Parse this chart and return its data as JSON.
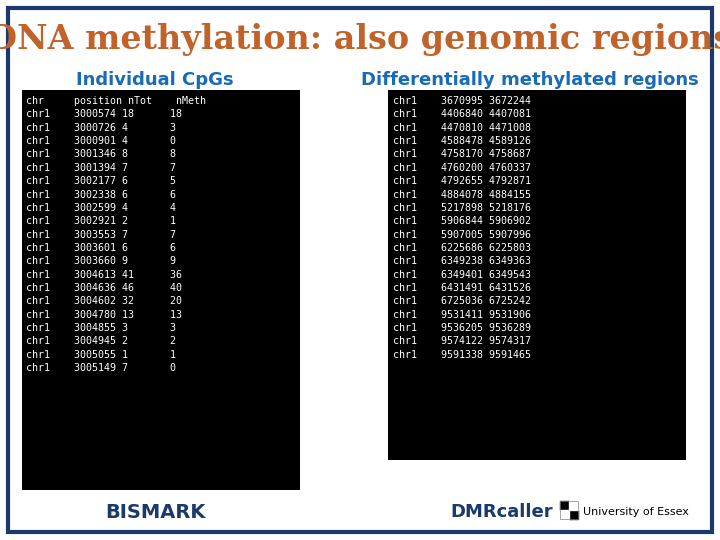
{
  "title": "DNA methylation: also genomic regions",
  "title_color": "#c0622a",
  "background_color": "#ffffff",
  "border_color": "#1a3a6b",
  "left_label": "Individual CpGs",
  "left_label_color": "#1a6bb5",
  "right_label": "Differentially methylated regions",
  "right_label_color": "#1a6bb5",
  "bismark_label": "BISMARK",
  "bismark_color": "#1a3a6b",
  "dmrcaller_label": "DMRcaller",
  "dmrcaller_color": "#1a3a6b",
  "table_bg": "#000000",
  "table_text_color": "#ffffff",
  "left_table_text": "chr     position nTot    nMeth\nchr1    3000574 18      18\nchr1    3000726 4       3\nchr1    3000901 4       0\nchr1    3001346 8       8\nchr1    3001394 7       7\nchr1    3002177 6       5\nchr1    3002338 6       6\nchr1    3002599 4       4\nchr1    3002921 2       1\nchr1    3003553 7       7\nchr1    3003601 6       6\nchr1    3003660 9       9\nchr1    3004613 41      36\nchr1    3004636 46      40\nchr1    3004602 32      20\nchr1    3004780 13      13\nchr1    3004855 3       3\nchr1    3004945 2       2\nchr1    3005055 1       1\nchr1    3005149 7       0",
  "right_table_text": "chr1    3670995 3672244\nchr1    4406840 4407081\nchr1    4470810 4471008\nchr1    4588478 4589126\nchr1    4758170 4758687\nchr1    4760200 4760337\nchr1    4792655 4792871\nchr1    4884078 4884155\nchr1    5217898 5218176\nchr1    5906844 5906902\nchr1    5907005 5907996\nchr1    6225686 6225803\nchr1    6349238 6349363\nchr1    6349401 6349543\nchr1    6431491 6431526\nchr1    6725036 6725242\nchr1    9531411 9531906\nchr1    9536205 9536289\nchr1    9574122 9574317\nchr1    9591338 9591465",
  "university_text": "University of Essex"
}
